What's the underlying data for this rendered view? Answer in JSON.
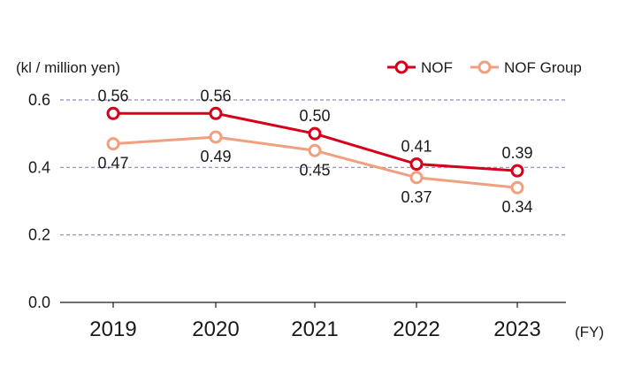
{
  "colors": {
    "nof": "#d7001a",
    "nof_group": "#f0a07f",
    "grid": "#8c8cb4",
    "axis": "#1a1a1a",
    "text": "#1a1a1a"
  },
  "chart_data": {
    "type": "line",
    "ylabel": "(kl / million yen)",
    "xlabel": "(FY)",
    "categories": [
      "2019",
      "2020",
      "2021",
      "2022",
      "2023"
    ],
    "ylim": [
      0,
      0.6
    ],
    "yticks": [
      "0.0",
      "0.2",
      "0.4",
      "0.6"
    ],
    "grid": "horizontal dashed at 0.2, 0.4, 0.6",
    "legend_position": "top-right",
    "series": [
      {
        "name": "NOF",
        "values": [
          0.56,
          0.56,
          0.5,
          0.41,
          0.39
        ],
        "labels": [
          "0.56",
          "0.56",
          "0.50",
          "0.41",
          "0.39"
        ]
      },
      {
        "name": "NOF Group",
        "values": [
          0.47,
          0.49,
          0.45,
          0.37,
          0.34
        ],
        "labels": [
          "0.47",
          "0.49",
          "0.45",
          "0.37",
          "0.34"
        ]
      }
    ]
  }
}
